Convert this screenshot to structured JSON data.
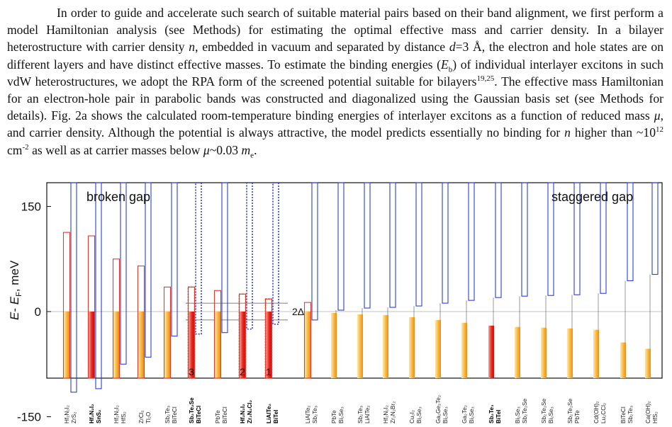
{
  "paragraph": {
    "s1": "In order to guide and accelerate such search of suitable material pairs based on their band alignment, we first perform a model Hamiltonian analysis (see Methods) for estimating the optimal effective mass and carrier density. In a bilayer heterostructure with carrier density ",
    "v_n": "n",
    "s2": ", embedded in vacuum and separated by distance ",
    "v_d": "d",
    "s3": "=3 Å,  the electron and hole states are on different layers and have distinct effective masses. To estimate the binding energies (",
    "v_E": "E",
    "sub_b": "b",
    "s4": ") of individual interlayer excitons in such vdW heterostructures, we adopt the RPA form of the screened potential suitable for bilayers",
    "ref": "19,25",
    "s5": ". The effective mass Hamiltonian for an electron-hole pair in parabolic bands was constructed and diagonalized using the Gaussian basis set (see Methods for details). Fig. 2a shows the calculated room-temperature binding energies of interlayer excitons as a function of reduced mass ",
    "v_mu": "μ",
    "s6": ", and carrier density. Although the potential is always attractive, the model predicts essentially no binding for ",
    "v_n2": "n",
    "s7": " higher than ~10",
    "sup12": "12",
    "s8": " cm",
    "sup_m2": "-2",
    "s9": " as well as at carrier masses below ",
    "v_mu2": "μ",
    "s10": "~0.03 ",
    "v_m": "m",
    "sub_e": "e",
    "s11": "."
  },
  "chart_data": {
    "type": "bar",
    "ylabel": "E- E_F, meV",
    "ylabel_parts": {
      "E": "E",
      "dash": "- ",
      "EF": "E",
      "F": "F",
      "unit": ", meV"
    },
    "yticks": [
      "150",
      "0",
      "-150"
    ],
    "ylim": [
      -160,
      160
    ],
    "annotations": {
      "broken_gap": "broken gap",
      "staggered_gap": "staggered gap",
      "two_delta": "2Δ",
      "numbers": [
        "3",
        "2",
        "1"
      ]
    },
    "pairs": [
      {
        "hole": "Hf₂N₂I₂",
        "electron": "ZrS₂",
        "vbm": 113,
        "cbm": -115,
        "bold": false
      },
      {
        "hole": "Hf₂N₂I₂",
        "electron": "SnS₂",
        "vbm": 108,
        "cbm": -110,
        "bold": true
      },
      {
        "hole": "Hf₂N₂I₂",
        "electron": "HfS₂",
        "vbm": 75,
        "cbm": -75,
        "bold": false
      },
      {
        "hole": "ZrCl₂",
        "electron": "Tl₂O",
        "vbm": 65,
        "cbm": -65,
        "bold": false
      },
      {
        "hole": "Sb₂Te₃",
        "electron": "BiTeCl",
        "vbm": 35,
        "cbm": -35,
        "bold": false
      },
      {
        "hole": "Sb₂Te₂Se",
        "electron": "BiTeCl",
        "vbm": 35,
        "cbm": -32,
        "bold": true,
        "highlight": "3"
      },
      {
        "hole": "PbTe",
        "electron": "BiTeCl",
        "vbm": 30,
        "cbm": -30,
        "bold": false
      },
      {
        "hole": "Hf₂N₂I₂",
        "electron": "Zr₂N₂Cl₂",
        "vbm": 25,
        "cbm": -25,
        "bold": true,
        "highlight": "2"
      },
      {
        "hole": "LiAlTe₂",
        "electron": "BiTeI",
        "vbm": 18,
        "cbm": -18,
        "bold": true,
        "highlight": "1"
      },
      {
        "hole": "LiAlTe₂",
        "electron": "Sb₂Te₃",
        "vbm": 13,
        "cbm": -12,
        "bold": false
      },
      {
        "hole": "PbTe",
        "electron": "Bi₂Se₃",
        "vbm": -2,
        "cbm": 2,
        "bold": false
      },
      {
        "hole": "Sb₂Te₃",
        "electron": "LiAlTe₂",
        "vbm": -4,
        "cbm": 5,
        "bold": false
      },
      {
        "hole": "Hf₂N₂I₂",
        "electron": "Zr₂N₂Br₂",
        "vbm": -5,
        "cbm": 6,
        "bold": false
      },
      {
        "hole": "Cu₂I₂",
        "electron": "Bi₂Se₃",
        "vbm": -8,
        "cbm": 8,
        "bold": false
      },
      {
        "hole": "Ga₂Ge₂Te₂",
        "electron": "Bi₂Se₃",
        "vbm": -12,
        "cbm": 12,
        "bold": false
      },
      {
        "hole": "Ga₂Te₂",
        "electron": "Bi₂Se₃",
        "vbm": -16,
        "cbm": 16,
        "bold": false
      },
      {
        "hole": "Sb₂Te₃",
        "electron": "BiTeI",
        "vbm": -20,
        "cbm": 20,
        "bold": true
      },
      {
        "hole": "Bi₂Se₃",
        "electron": "Sb₂Te₂Se",
        "vbm": -22,
        "cbm": 22,
        "bold": false
      },
      {
        "hole": "Sb₂Te₂Se",
        "electron": "Bi₂Se₃",
        "vbm": -23,
        "cbm": 23,
        "bold": false
      },
      {
        "hole": "Sb₂Te₂Se",
        "electron": "PbTe",
        "vbm": -24,
        "cbm": 24,
        "bold": false
      },
      {
        "hole": "Cd(OH)₂",
        "electron": "Lu₂CCl₂",
        "vbm": -26,
        "cbm": 26,
        "bold": false
      },
      {
        "hole": "BiTeCl",
        "electron": "Sb₂Te₃",
        "vbm": -44,
        "cbm": 44,
        "bold": false
      },
      {
        "hole": "Ca(OH)₂",
        "electron": "HfS₂",
        "vbm": -53,
        "cbm": 53,
        "bold": false
      }
    ],
    "colors": {
      "vb_fill_light": "#fde8a8",
      "vb_fill_dark": "#f5a623",
      "vb_fill_red": "#e8211a",
      "vb_outline": "#e23a2a",
      "cb_outline": "#2a3fd6",
      "guide": "#555555"
    }
  }
}
